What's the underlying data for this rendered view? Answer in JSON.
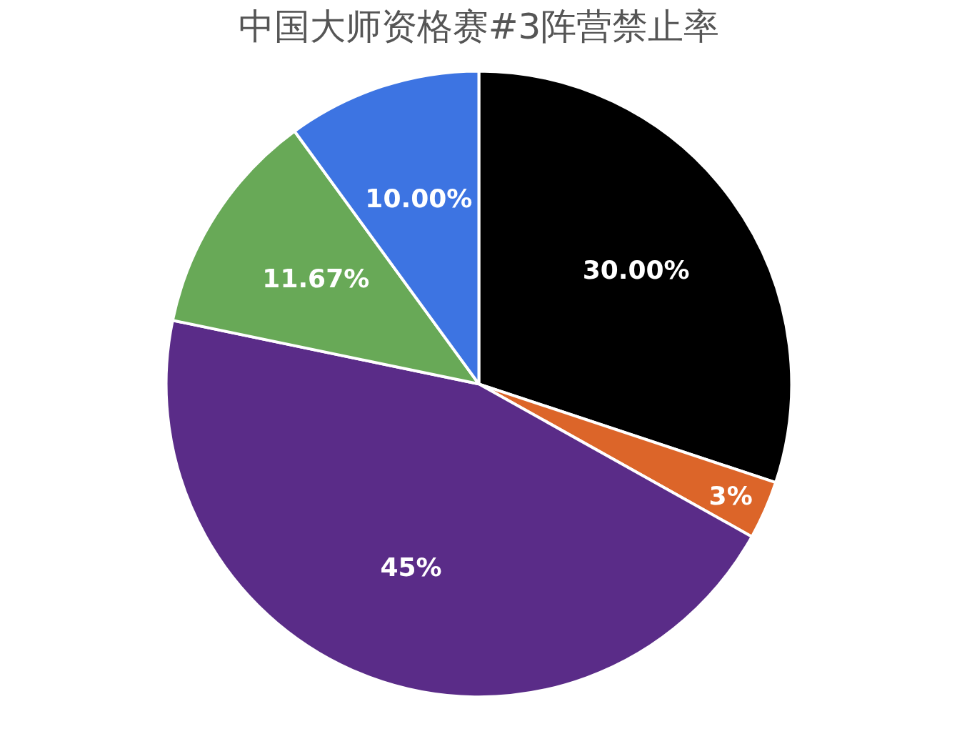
{
  "chart_data": {
    "type": "pie",
    "title": "中国大师资格赛#3阵营禁止率",
    "categories": [
      null,
      null,
      null,
      null,
      null
    ],
    "values": [
      30,
      3,
      45,
      11.67,
      10
    ],
    "value_labels": [
      "30.00%",
      "3%",
      "45%",
      "11.67%",
      "10.00%"
    ],
    "colors": [
      "#000000",
      "#dc6529",
      "#5a2c88",
      "#68a957",
      "#3d74e2"
    ]
  }
}
